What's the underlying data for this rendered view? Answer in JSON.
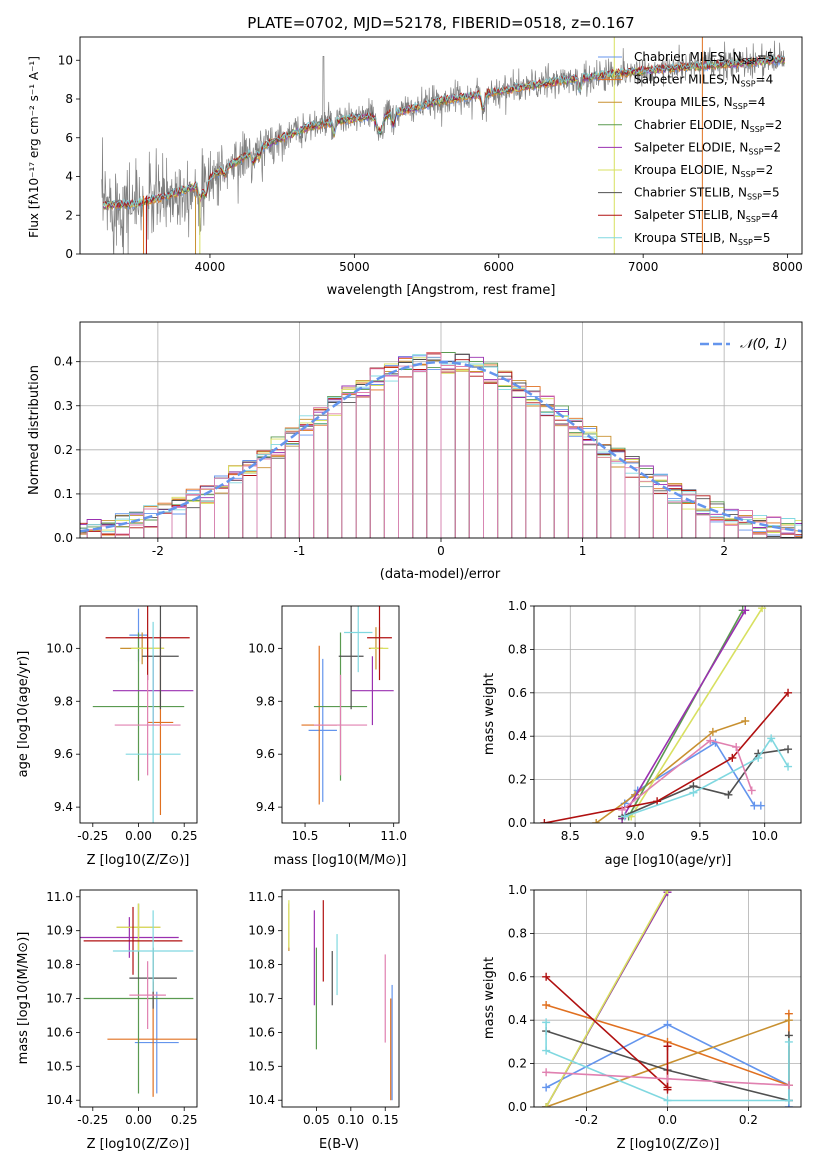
{
  "colors": [
    "#6495ed",
    "#e07020",
    "#c89030",
    "#5a9a50",
    "#9a30b0",
    "#d8e060",
    "#505050",
    "#b01010",
    "#80d8e0",
    "#e080b0"
  ],
  "chart_data": [
    {
      "type": "line",
      "id": "spectrum",
      "title": "PLATE=0702, MJD=52178, FIBERID=0518, z=0.167",
      "xlabel": "wavelength [Angstrom, rest frame]",
      "ylabel": "Flux [fλ10⁻¹⁷ erg cm⁻² s⁻¹ A⁻¹]",
      "xlim": [
        3100,
        8100
      ],
      "ylim": [
        0,
        11.2
      ],
      "xticks": [
        4000,
        5000,
        6000,
        7000,
        8000
      ],
      "yticks": [
        0,
        2,
        4,
        6,
        8,
        10
      ],
      "legend_position": "top-right",
      "legend": [
        "Chabrier MILES, N_SSP=5",
        "Salpeter MILES, N_SSP=4",
        "Kroupa MILES, N_SSP=4",
        "Chabrier ELODIE, N_SSP=2",
        "Salpeter ELODIE, N_SSP=2",
        "Kroupa ELODIE, N_SSP=2",
        "Chabrier STELIB, N_SSP=5",
        "Salpeter STELIB, N_SSP=4",
        "Kroupa STELIB, N_SSP=5"
      ],
      "continuum": [
        [
          3250,
          2.5
        ],
        [
          3500,
          2.6
        ],
        [
          3700,
          3.0
        ],
        [
          3900,
          3.5
        ],
        [
          4100,
          4.4
        ],
        [
          4300,
          5.3
        ],
        [
          4500,
          6.0
        ],
        [
          4700,
          6.6
        ],
        [
          5000,
          7.0
        ],
        [
          5300,
          7.3
        ],
        [
          5600,
          7.9
        ],
        [
          6000,
          8.4
        ],
        [
          6400,
          8.9
        ],
        [
          6800,
          9.3
        ],
        [
          7200,
          9.6
        ],
        [
          7600,
          9.8
        ],
        [
          7900,
          10.0
        ]
      ]
    },
    {
      "type": "bar",
      "id": "residuals",
      "xlabel": "(data-model)/error",
      "ylabel": "Normed distribution",
      "xlim": [
        -2.55,
        2.55
      ],
      "ylim": [
        0,
        0.49
      ],
      "xticks": [
        -2,
        -1,
        0,
        1,
        2
      ],
      "yticks": [
        0.0,
        0.1,
        0.2,
        0.3,
        0.4
      ],
      "grid": true,
      "legend_position": "top-right",
      "legend": [
        "𝒩(0, 1)"
      ],
      "bin_width": 0.1
    },
    {
      "type": "scatter",
      "id": "age-vs-z",
      "xlabel": "Z [log10(Z/Z⊙)]",
      "ylabel": "age  [log10(age/yr)]",
      "xlim": [
        -0.32,
        0.32
      ],
      "ylim": [
        9.34,
        10.16
      ],
      "xticks": [
        -0.25,
        0.0,
        0.25
      ],
      "yticks": [
        9.4,
        9.6,
        9.8,
        10.0
      ],
      "points": [
        {
          "x": 0.0,
          "y": 10.05,
          "xe": 0.05,
          "ye": 0.1
        },
        {
          "x": 0.12,
          "y": 9.72,
          "xe": 0.07,
          "ye": 0.35
        },
        {
          "x": 0.02,
          "y": 10.0,
          "xe": 0.12,
          "ye": 0.06
        },
        {
          "x": 0.0,
          "y": 9.78,
          "xe": 0.25,
          "ye": 0.28
        },
        {
          "x": 0.08,
          "y": 9.84,
          "xe": 0.22,
          "ye": 0.13
        },
        {
          "x": 0.05,
          "y": 10.0,
          "xe": 0.09,
          "ye": 0.04
        },
        {
          "x": 0.12,
          "y": 9.97,
          "xe": 0.1,
          "ye": 0.2
        },
        {
          "x": 0.05,
          "y": 10.04,
          "xe": 0.23,
          "ye": 0.16
        },
        {
          "x": 0.08,
          "y": 9.6,
          "xe": 0.15,
          "ye": 0.5
        },
        {
          "x": 0.05,
          "y": 9.71,
          "xe": 0.18,
          "ye": 0.19
        }
      ]
    },
    {
      "type": "scatter",
      "id": "age-vs-mass",
      "xlabel": "mass [log10(M/M⊙)]",
      "ylabel": "",
      "xlim": [
        10.37,
        11.03
      ],
      "ylim": [
        9.34,
        10.16
      ],
      "xticks": [
        10.5,
        10.75,
        11.0
      ],
      "xticklabels": [
        "10.5",
        "",
        "11.0"
      ],
      "yticks": [
        9.4,
        9.6,
        9.8,
        10.0
      ],
      "points": [
        {
          "x": 10.6,
          "y": 9.69,
          "xe": 0.08,
          "ye": 0.27
        },
        {
          "x": 10.58,
          "y": 9.71,
          "xe": 0.1,
          "ye": 0.3
        },
        {
          "x": 10.9,
          "y": 10.0,
          "xe": 0.04,
          "ye": 0.08
        },
        {
          "x": 10.7,
          "y": 9.78,
          "xe": 0.15,
          "ye": 0.28
        },
        {
          "x": 10.88,
          "y": 9.84,
          "xe": 0.12,
          "ye": 0.13
        },
        {
          "x": 10.92,
          "y": 10.0,
          "xe": 0.05,
          "ye": 0.08
        },
        {
          "x": 10.76,
          "y": 9.97,
          "xe": 0.07,
          "ye": 0.2
        },
        {
          "x": 10.92,
          "y": 10.04,
          "xe": 0.07,
          "ye": 0.16
        },
        {
          "x": 10.8,
          "y": 10.06,
          "xe": 0.08,
          "ye": 0.15
        },
        {
          "x": 10.7,
          "y": 9.71,
          "xe": 0.15,
          "ye": 0.19
        }
      ]
    },
    {
      "type": "line",
      "id": "weight-vs-age",
      "xlabel": "age  [log10(age/yr)]",
      "ylabel": "mass weight",
      "xlim": [
        8.22,
        10.28
      ],
      "ylim": [
        0,
        1.0
      ],
      "xticks": [
        8.5,
        9.0,
        9.5,
        10.0
      ],
      "yticks": [
        0.0,
        0.2,
        0.4,
        0.6,
        0.8,
        1.0
      ],
      "grid": true,
      "series": [
        {
          "x": [
            8.92,
            9.02,
            9.62,
            9.92,
            9.97
          ],
          "y": [
            0.09,
            0.15,
            0.37,
            0.08,
            0.08
          ]
        },
        {
          "x": 8.92,
          "y": 0,
          "skip": true
        },
        {
          "x": [
            8.7,
            9.0,
            9.6,
            9.85
          ],
          "y": [
            0.0,
            0.13,
            0.42,
            0.47
          ]
        },
        {
          "x": [
            8.95,
            9.83
          ],
          "y": [
            0.03,
            0.98
          ]
        },
        {
          "x": [
            8.9,
            9.85
          ],
          "y": [
            0.02,
            0.98
          ]
        },
        {
          "x": [
            8.97,
            9.98
          ],
          "y": [
            0.03,
            0.99
          ]
        },
        {
          "x": [
            8.9,
            9.45,
            9.72,
            9.95,
            10.18
          ],
          "y": [
            0.03,
            0.17,
            0.13,
            0.32,
            0.34
          ]
        },
        {
          "x": [
            8.3,
            9.17,
            9.75,
            10.18
          ],
          "y": [
            0.0,
            0.1,
            0.3,
            0.6
          ]
        },
        {
          "x": [
            8.92,
            9.45,
            9.95,
            10.05,
            10.18
          ],
          "y": [
            0.03,
            0.14,
            0.3,
            0.39,
            0.26
          ]
        },
        {
          "x": [
            8.9,
            9.58,
            9.78,
            9.9
          ],
          "y": [
            0.06,
            0.38,
            0.35,
            0.15
          ]
        }
      ]
    },
    {
      "type": "scatter",
      "id": "mass-vs-z",
      "xlabel": "Z [log10(Z/Z⊙)]",
      "ylabel": "mass [log10(M/M⊙)]",
      "xlim": [
        -0.32,
        0.32
      ],
      "ylim": [
        10.38,
        11.02
      ],
      "xticks": [
        -0.25,
        0.0,
        0.25
      ],
      "yticks": [
        10.4,
        10.5,
        10.6,
        10.7,
        10.8,
        10.9,
        11.0
      ],
      "points": [
        {
          "x": 0.1,
          "y": 10.57,
          "xe": 0.12,
          "ye": 0.15
        },
        {
          "x": 0.08,
          "y": 10.58,
          "xe": 0.25,
          "ye": 0.17
        },
        {
          "x": 0.0,
          "y": 10.91,
          "xe": 0.12,
          "ye": 0.07
        },
        {
          "x": 0.0,
          "y": 10.7,
          "xe": 0.3,
          "ye": 0.28
        },
        {
          "x": -0.05,
          "y": 10.88,
          "xe": 0.27,
          "ye": 0.06
        },
        {
          "x": 0.0,
          "y": 10.91,
          "xe": 0.12,
          "ye": 0.07
        },
        {
          "x": 0.08,
          "y": 10.76,
          "xe": 0.13,
          "ye": 0.09
        },
        {
          "x": -0.03,
          "y": 10.87,
          "xe": 0.27,
          "ye": 0.1
        },
        {
          "x": 0.08,
          "y": 10.84,
          "xe": 0.22,
          "ye": 0.12
        },
        {
          "x": 0.05,
          "y": 10.71,
          "xe": 0.1,
          "ye": 0.1
        }
      ]
    },
    {
      "type": "scatter",
      "id": "mass-vs-ebv",
      "xlabel": "E(B-V)",
      "ylabel": "",
      "xlim": [
        0.0,
        0.17
      ],
      "ylim": [
        10.38,
        11.02
      ],
      "xticks": [
        0.05,
        0.1,
        0.15
      ],
      "xticklabels": [
        "0.05",
        "0.10",
        "0.15"
      ],
      "yticks": [
        10.4,
        10.5,
        10.6,
        10.7,
        10.8,
        10.9,
        11.0
      ],
      "points": [
        {
          "x": 0.16,
          "y": 10.57,
          "ye": 0.17
        },
        {
          "x": 0.158,
          "y": 10.55,
          "ye": 0.15
        },
        {
          "x": 0.01,
          "y": 10.91,
          "ye": 0.07
        },
        {
          "x": 0.05,
          "y": 10.7,
          "ye": 0.15
        },
        {
          "x": 0.047,
          "y": 10.82,
          "ye": 0.14
        },
        {
          "x": 0.01,
          "y": 10.92,
          "ye": 0.07
        },
        {
          "x": 0.073,
          "y": 10.76,
          "ye": 0.08
        },
        {
          "x": 0.06,
          "y": 10.87,
          "ye": 0.12
        },
        {
          "x": 0.08,
          "y": 10.8,
          "ye": 0.09
        },
        {
          "x": 0.15,
          "y": 10.7,
          "ye": 0.13
        }
      ]
    },
    {
      "type": "line",
      "id": "weight-vs-z",
      "xlabel": "Z [log10(Z/Z⊙)]",
      "ylabel": "mass weight",
      "xlim": [
        -0.33,
        0.33
      ],
      "ylim": [
        0,
        1.0
      ],
      "xticks": [
        -0.2,
        0.0,
        0.2
      ],
      "yticks": [
        0.0,
        0.2,
        0.4,
        0.6,
        0.8,
        1.0
      ],
      "grid": true,
      "series": [
        {
          "x": [
            -0.3,
            0.0,
            0.3,
            0.3
          ],
          "y": [
            0.09,
            0.38,
            0.1,
            0.0
          ]
        },
        {
          "x": [
            -0.3,
            0.0,
            0.3,
            0.3
          ],
          "y": [
            0.47,
            0.3,
            0.1,
            0.43
          ]
        },
        {
          "x": [
            -0.3,
            0.3
          ],
          "y": [
            0.0,
            0.4
          ]
        },
        {
          "x": [
            -0.3,
            0.0
          ],
          "y": [
            0.0,
            0.99
          ]
        },
        {
          "x": [
            -0.3,
            0.0
          ],
          "y": [
            0.0,
            0.99
          ]
        },
        {
          "x": [
            -0.3,
            0.0
          ],
          "y": [
            0.0,
            1.0
          ]
        },
        {
          "x": [
            -0.3,
            0.0,
            0.3,
            0.3
          ],
          "y": [
            0.35,
            0.17,
            0.03,
            0.33
          ]
        },
        {
          "x": [
            -0.3,
            0.0,
            0.0,
            0.0
          ],
          "y": [
            0.6,
            0.09,
            0.28,
            0.08
          ]
        },
        {
          "x": [
            -0.3,
            -0.3,
            0.0,
            0.3,
            0.3
          ],
          "y": [
            0.39,
            0.26,
            0.03,
            0.03,
            0.3
          ]
        },
        {
          "x": [
            -0.3,
            0.0,
            0.3
          ],
          "y": [
            0.16,
            0.13,
            0.1
          ]
        }
      ]
    }
  ]
}
